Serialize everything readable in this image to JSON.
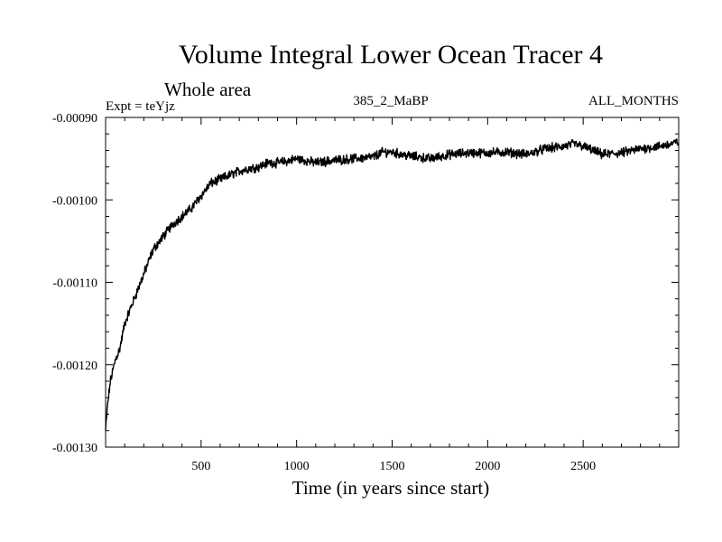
{
  "chart_data": {
    "type": "line",
    "title": "Volume Integral Lower Ocean Tracer 4",
    "subtitle": "Whole area",
    "experiment_label": "Expt = teYjz",
    "run_label": "385_2_MaBP",
    "months_label": "ALL_MONTHS",
    "xlabel": "Time (in years since start)",
    "ylabel": "",
    "xlim": [
      0,
      3000
    ],
    "ylim": [
      -0.0013,
      -0.0009
    ],
    "x_ticks": [
      500,
      1000,
      1500,
      2000,
      2500
    ],
    "x_tick_labels": [
      "500",
      "1000",
      "1500",
      "2000",
      "2500"
    ],
    "y_ticks": [
      -0.0013,
      -0.0012,
      -0.0011,
      -0.001,
      -0.0009
    ],
    "y_tick_labels": [
      "-0.00130",
      "-0.00120",
      "-0.00110",
      "-0.00100",
      "-0.00090"
    ],
    "grid": false,
    "series": [
      {
        "name": "Volume Integral Lower Ocean Tracer 4",
        "color": "#000000",
        "x": [
          0,
          10,
          25,
          50,
          75,
          100,
          150,
          200,
          250,
          300,
          350,
          400,
          450,
          500,
          550,
          600,
          650,
          700,
          750,
          800,
          850,
          900,
          950,
          1000,
          1100,
          1200,
          1300,
          1400,
          1450,
          1500,
          1550,
          1600,
          1700,
          1800,
          1900,
          2000,
          2100,
          2200,
          2300,
          2400,
          2450,
          2500,
          2550,
          2600,
          2700,
          2800,
          2900,
          3000
        ],
        "values": [
          -0.00128,
          -0.00125,
          -0.00122,
          -0.001195,
          -0.00118,
          -0.00115,
          -0.00112,
          -0.00109,
          -0.00106,
          -0.001045,
          -0.00103,
          -0.00102,
          -0.00101,
          -0.000995,
          -0.00098,
          -0.000975,
          -0.00097,
          -0.000965,
          -0.000962,
          -0.00096,
          -0.000955,
          -0.000955,
          -0.000953,
          -0.00095,
          -0.000955,
          -0.000952,
          -0.00095,
          -0.000948,
          -0.000942,
          -0.000942,
          -0.000945,
          -0.000947,
          -0.00095,
          -0.000945,
          -0.000943,
          -0.000943,
          -0.000942,
          -0.000945,
          -0.000938,
          -0.000935,
          -0.000932,
          -0.000935,
          -0.00094,
          -0.000945,
          -0.000943,
          -0.000938,
          -0.000935,
          -0.00093
        ]
      }
    ]
  }
}
